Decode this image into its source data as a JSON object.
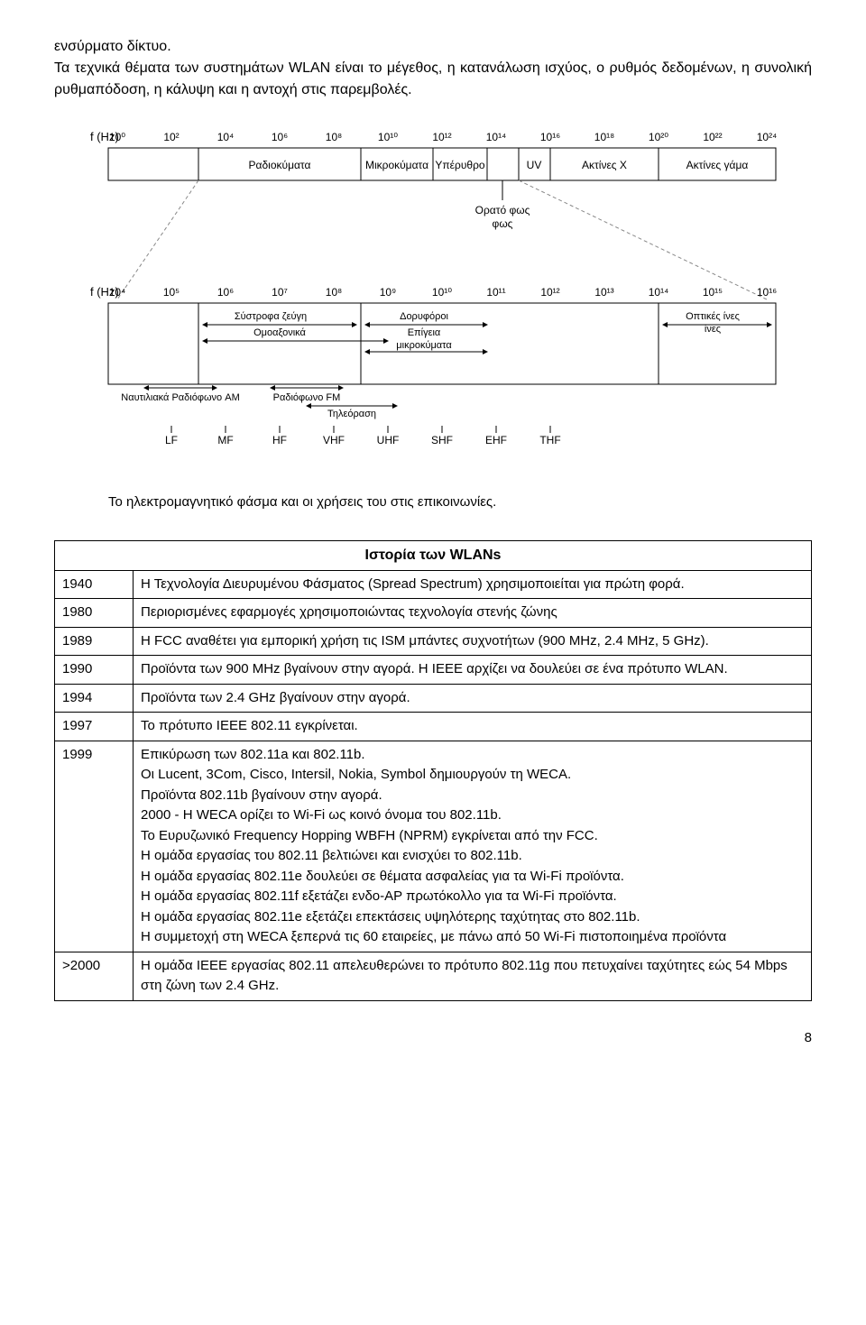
{
  "intro": {
    "line1": "ενσύρματο δίκτυο.",
    "line2": "Τα τεχνικά θέματα των συστημάτων WLAN είναι το μέγεθος, η κατανάλωση ισχύος, ο ρυθμός δεδομένων, η συνολική ρυθμαπόδοση, η κάλυψη και η αντοχή στις παρεμβολές."
  },
  "spectrum": {
    "caption": "Το ηλεκτρομαγνητικό φάσμα και οι χρήσεις του στις επικοινωνίες.",
    "top": {
      "axis_label": "f (Hz)",
      "ticks": [
        "10⁰",
        "10²",
        "10⁴",
        "10⁶",
        "10⁸",
        "10¹⁰",
        "10¹²",
        "10¹⁴",
        "10¹⁶",
        "10¹⁸",
        "10²⁰",
        "10²²",
        "10²⁴"
      ],
      "bands": [
        "Ραδιοκύματα",
        "Μικροκύματα",
        "Υπέρυθρο",
        "UV",
        "Ακτίνες Χ",
        "Ακτίνες γάμα"
      ],
      "gap_label": "Ορατό φως"
    },
    "bottom": {
      "axis_label": "f (Hz)",
      "ticks": [
        "10⁴",
        "10⁵",
        "10⁶",
        "10⁷",
        "10⁸",
        "10⁹",
        "10¹⁰",
        "10¹¹",
        "10¹²",
        "10¹³",
        "10¹⁴",
        "10¹⁵",
        "10¹⁶"
      ],
      "labels": {
        "sustrofa": "Σύστροφα ζεύγη",
        "omoaxonika": "Ομοαξονικά",
        "nautil": "Ναυτιλιακά Ραδιόφωνο AM",
        "fm": "Ραδιόφωνο FM",
        "tv": "Τηλεόραση",
        "doryforoi": "Δορυφόροι",
        "epigeia": "Επίγεια μικροκύματα",
        "optikes": "Οπτικές ίνες"
      },
      "letters": [
        "LF",
        "MF",
        "HF",
        "VHF",
        "UHF",
        "SHF",
        "EHF",
        "THF"
      ]
    }
  },
  "history": {
    "title": "Ιστορία των WLANs",
    "rows": [
      {
        "year": "1940",
        "text": "Η Τεχνολογία Διευρυμένου Φάσματος (Spread Spectrum) χρησιμοποιείται για πρώτη φορά."
      },
      {
        "year": "1980",
        "text": "Περιορισμένες εφαρμογές χρησιμοποιώντας τεχνολογία στενής ζώνης"
      },
      {
        "year": "1989",
        "text": "Η FCC αναθέτει για εμπορική χρήση τις ISM μπάντες συχνοτήτων (900 MHz, 2.4 MHz, 5 GHz)."
      },
      {
        "year": "1990",
        "text": "Προϊόντα των 900 MHz βγαίνουν στην αγορά. Η IEEE αρχίζει να δουλεύει σε ένα πρότυπο WLAN."
      },
      {
        "year": "1994",
        "text": "Προϊόντα των 2.4 GHz βγαίνουν στην αγορά."
      },
      {
        "year": "1997",
        "text": "Το πρότυπο IEEE 802.11 εγκρίνεται."
      },
      {
        "year": "1999",
        "text": "Επικύρωση των 802.11a και 802.11b.\nΟι Lucent, 3Com, Cisco, Intersil, Nokia, Symbol δημιουργούν τη WECA.\nΠροϊόντα 802.11b βγαίνουν στην αγορά.\n2000 - Η WECA ορίζει το Wi-Fi ως κοινό όνομα του 802.11b.\nΤο Ευρυζωνικό Frequency Hopping WBFH (NPRM) εγκρίνεται από την FCC.\nΗ ομάδα εργασίας του 802.11 βελτιώνει και ενισχύει το 802.11b.\nΗ ομάδα εργασίας 802.11e δουλεύει σε θέματα ασφαλείας για τα Wi-Fi προϊόντα.\nΗ ομάδα εργασίας 802.11f εξετάζει ενδο-AP πρωτόκολλο για τα Wi-Fi προϊόντα.\nΗ ομάδα εργασίας 802.11e εξετάζει επεκτάσεις υψηλότερης ταχύτητας στο 802.11b.\nΗ συμμετοχή στη WECA ξεπερνά τις 60 εταιρείες, με πάνω από 50 Wi-Fi πιστοποιημένα προϊόντα"
      },
      {
        "year": ">2000",
        "text": "Η ομάδα IEEE εργασίας 802.11 απελευθερώνει το πρότυπο 802.11g που πετυχαίνει ταχύτητες εώς 54 Mbps στη ζώνη των 2.4 GHz."
      }
    ]
  },
  "pagenum": "8"
}
